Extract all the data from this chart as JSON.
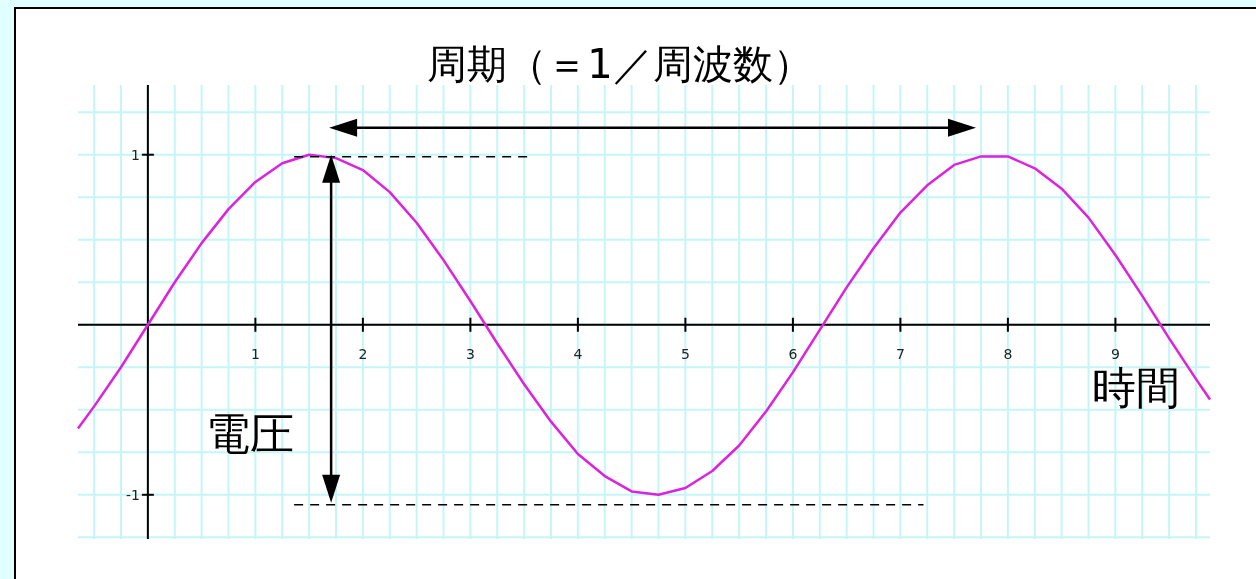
{
  "chart_data": {
    "type": "line",
    "title": "周期（＝1／周波数）",
    "xlabel": "時間",
    "ylabel": "電圧",
    "x": [
      -0.65,
      -0.5,
      -0.25,
      0,
      0.25,
      0.5,
      0.75,
      1,
      1.25,
      1.5,
      1.75,
      2,
      2.25,
      2.5,
      2.75,
      3,
      3.25,
      3.5,
      3.75,
      4,
      4.25,
      4.5,
      4.75,
      5,
      5.25,
      5.5,
      5.75,
      6,
      6.25,
      6.5,
      6.75,
      7,
      7.25,
      7.5,
      7.75,
      8,
      8.25,
      8.5,
      8.75,
      9,
      9.25,
      9.5,
      9.75,
      9.88
    ],
    "series": [
      {
        "color": "#dd22dd",
        "values": [
          -0.61,
          -0.48,
          -0.25,
          0,
          0.25,
          0.48,
          0.68,
          0.84,
          0.95,
          1.0,
          0.98,
          0.91,
          0.78,
          0.6,
          0.38,
          0.14,
          -0.11,
          -0.35,
          -0.57,
          -0.76,
          -0.89,
          -0.98,
          -1.0,
          -0.96,
          -0.86,
          -0.71,
          -0.51,
          -0.28,
          -0.03,
          0.22,
          0.45,
          0.66,
          0.82,
          0.94,
          0.99,
          0.99,
          0.92,
          0.8,
          0.63,
          0.41,
          0.17,
          -0.08,
          -0.32,
          -0.44
        ]
      }
    ],
    "xlim": [
      -0.65,
      9.88
    ],
    "ylim": [
      -1.26,
      1.41
    ],
    "xticks": [
      {
        "value": -0.5,
        "label": null
      },
      {
        "value": -0.25,
        "label": null
      },
      {
        "value": 0,
        "label": null
      },
      {
        "value": 0.25,
        "label": null
      },
      {
        "value": 0.5,
        "label": null
      },
      {
        "value": 0.75,
        "label": null
      },
      1,
      {
        "value": 1.25,
        "label": null
      },
      {
        "value": 1.5,
        "label": null
      },
      {
        "value": 1.75,
        "label": null
      },
      2,
      {
        "value": 2.25,
        "label": null
      },
      {
        "value": 2.5,
        "label": null
      },
      {
        "value": 2.75,
        "label": null
      },
      3,
      {
        "value": 3.25,
        "label": null
      },
      {
        "value": 3.5,
        "label": null
      },
      {
        "value": 3.75,
        "label": null
      },
      4,
      {
        "value": 4.25,
        "label": null
      },
      {
        "value": 4.5,
        "label": null
      },
      {
        "value": 4.75,
        "label": null
      },
      5,
      {
        "value": 5.25,
        "label": null
      },
      {
        "value": 5.5,
        "label": null
      },
      {
        "value": 5.75,
        "label": null
      },
      6,
      {
        "value": 6.25,
        "label": null
      },
      {
        "value": 6.5,
        "label": null
      },
      {
        "value": 6.75,
        "label": null
      },
      7,
      {
        "value": 7.25,
        "label": null
      },
      {
        "value": 7.5,
        "label": null
      },
      {
        "value": 7.75,
        "label": null
      },
      8,
      {
        "value": 8.25,
        "label": null
      },
      {
        "value": 8.5,
        "label": null
      },
      {
        "value": 8.75,
        "label": null
      },
      9,
      {
        "value": 9.25,
        "label": null
      },
      {
        "value": 9.5,
        "label": null
      },
      {
        "value": 9.75,
        "label": null
      }
    ],
    "yticks": [
      {
        "value": -1.25,
        "label": null
      },
      {
        "value": -1,
        "label": "-1"
      },
      {
        "value": -0.75,
        "label": null
      },
      {
        "value": -0.5,
        "label": null
      },
      {
        "value": -0.25,
        "label": null
      },
      {
        "value": 0,
        "label": null
      },
      {
        "value": 0.25,
        "label": null
      },
      {
        "value": 0.5,
        "label": null
      },
      {
        "value": 0.75,
        "label": null
      },
      1,
      {
        "value": 1.25,
        "label": null
      }
    ],
    "grid": true,
    "marker": "none",
    "line_style": "solid"
  }
}
